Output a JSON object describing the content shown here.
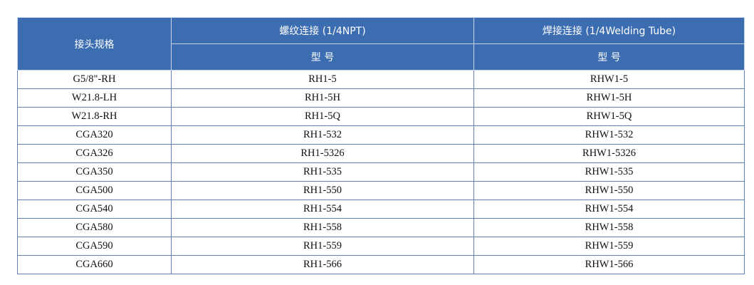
{
  "header": {
    "spec": "接头规格",
    "thread": "螺纹连接 (1/4NPT)",
    "weld": "焊接连接 (1/4Welding Tube)",
    "model1": "型 号",
    "model2": "型 号"
  },
  "colors": {
    "header_bg": "#3c6db1",
    "border": "#5f7fb0"
  },
  "rows": [
    [
      "G5/8\"-RH",
      "RH1-5",
      "RHW1-5"
    ],
    [
      "W21.8-LH",
      "RH1-5H",
      "RHW1-5H"
    ],
    [
      "W21.8-RH",
      "RH1-5Q",
      "RHW1-5Q"
    ],
    [
      "CGA320",
      "RH1-532",
      "RHW1-532"
    ],
    [
      "CGA326",
      "RH1-5326",
      "RHW1-5326"
    ],
    [
      "CGA350",
      "RH1-535",
      "RHW1-535"
    ],
    [
      "CGA500",
      "RH1-550",
      "RHW1-550"
    ],
    [
      "CGA540",
      "RH1-554",
      "RHW1-554"
    ],
    [
      "CGA580",
      "RH1-558",
      "RHW1-558"
    ],
    [
      "CGA590",
      "RH1-559",
      "RHW1-559"
    ],
    [
      "CGA660",
      "RH1-566",
      "RHW1-566"
    ]
  ]
}
